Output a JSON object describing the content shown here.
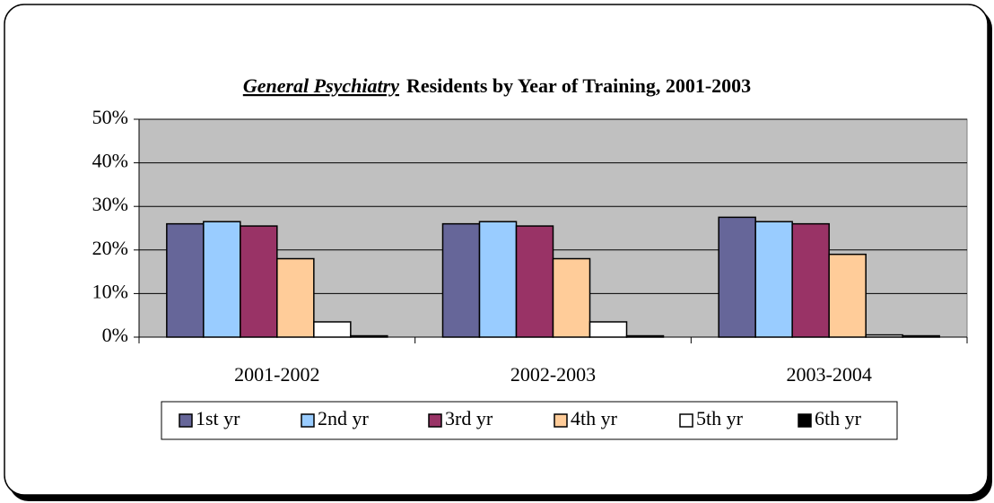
{
  "chart_data": {
    "type": "bar",
    "title": [
      "General Psychiatry",
      "Residents by Year of Training, 2001-2003"
    ],
    "categories": [
      "2001-2002",
      "2002-2003",
      "2003-2004"
    ],
    "series": [
      {
        "name": "1st yr",
        "color": "#666699",
        "values": [
          26,
          26,
          27.5
        ]
      },
      {
        "name": "2nd yr",
        "color": "#99ccff",
        "values": [
          26.5,
          26.5,
          26.5
        ]
      },
      {
        "name": "3rd yr",
        "color": "#993366",
        "values": [
          25.5,
          25.5,
          26
        ]
      },
      {
        "name": "4th yr",
        "color": "#ffcc99",
        "values": [
          18,
          18,
          19
        ]
      },
      {
        "name": "5th yr",
        "color": "#ffffff",
        "values": [
          3.5,
          3.5,
          0.5
        ]
      },
      {
        "name": "6th yr",
        "color": "#000000",
        "values": [
          0.3,
          0.3,
          0.3
        ]
      }
    ],
    "ylim": [
      0,
      50
    ],
    "yticks": [
      {
        "value": 0,
        "label": "0%"
      },
      {
        "value": 10,
        "label": "10%"
      },
      {
        "value": 20,
        "label": "20%"
      },
      {
        "value": 30,
        "label": "30%"
      },
      {
        "value": 40,
        "label": "40%"
      },
      {
        "value": 50,
        "label": "50%"
      }
    ],
    "grid": true,
    "plot_background": "#c0c0c0",
    "legend": "bottom"
  }
}
